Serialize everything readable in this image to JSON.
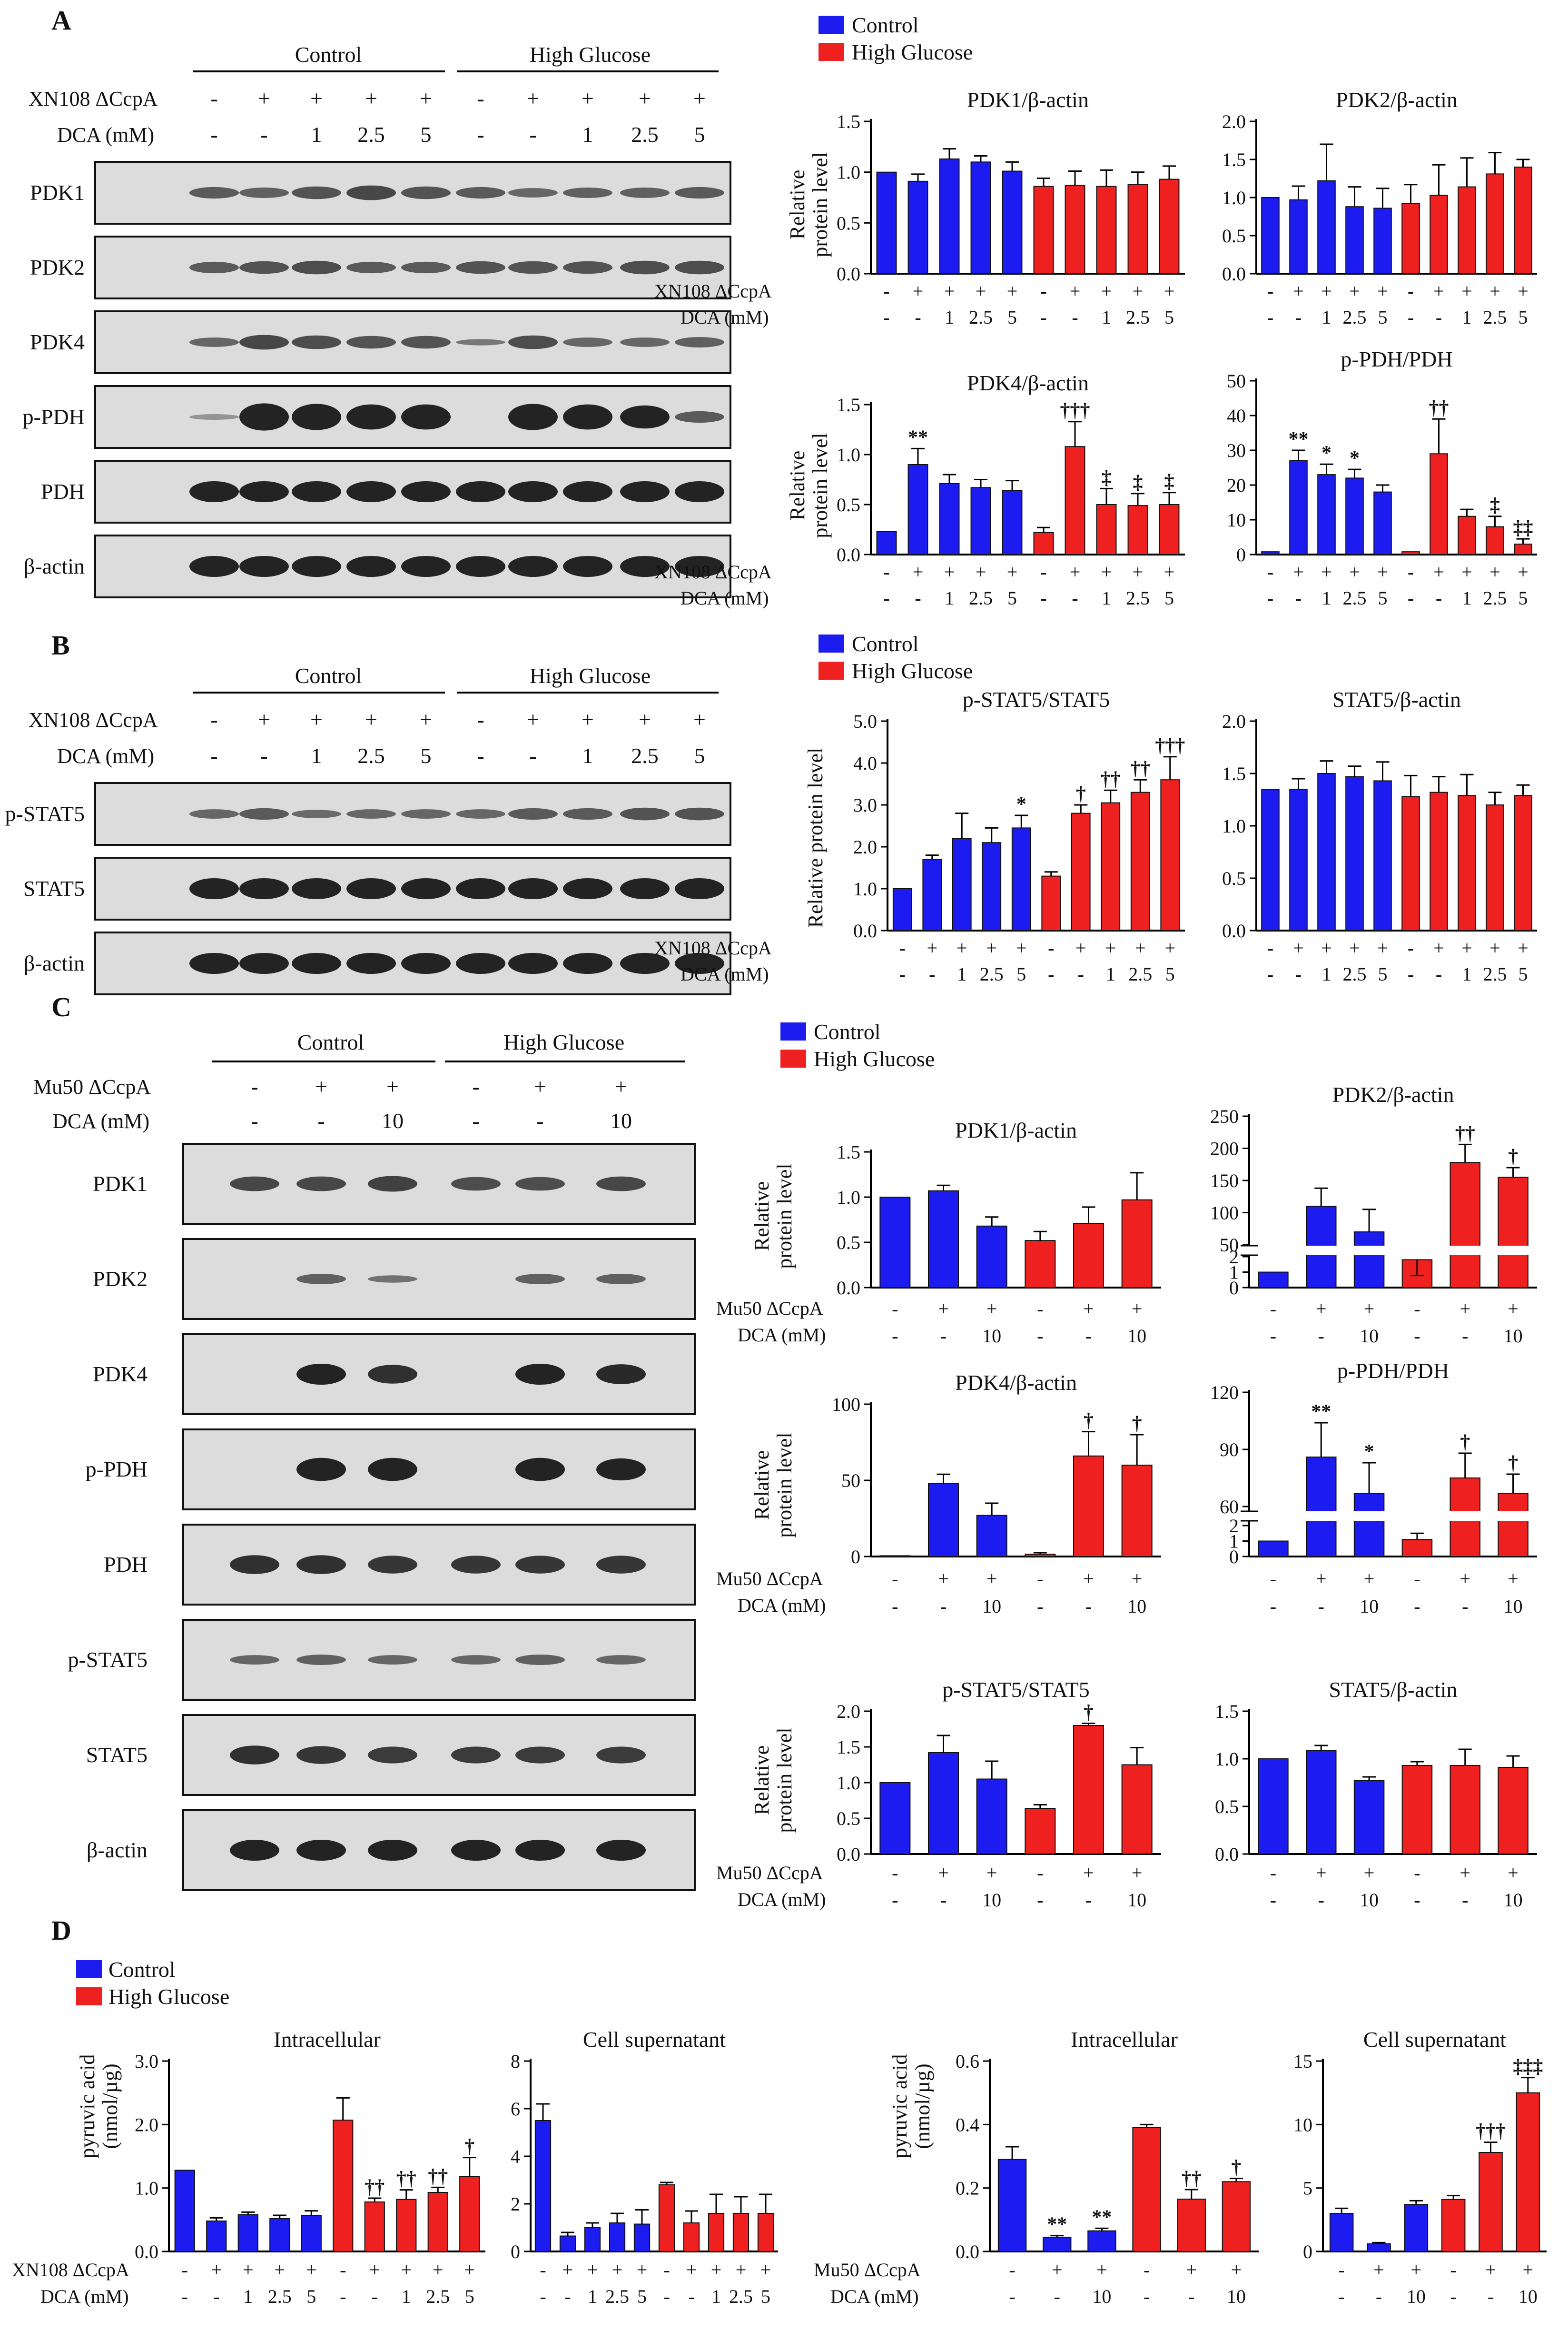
{
  "colors": {
    "control": "#1c1cf0",
    "high_glucose": "#ef2020",
    "blot_bg": "#dcdcdc",
    "band": "#232323"
  },
  "panel_letters": [
    "A",
    "B",
    "C",
    "D"
  ],
  "conditions": {
    "control": "Control",
    "high_glucose": "High Glucose"
  },
  "legend": {
    "control": "Control",
    "high_glucose": "High Glucose"
  },
  "axis_common": {
    "relative": "Relative",
    "protein_level": "protein level",
    "relative_protein_level": "Relative protein level",
    "pyruvic": "pyruvic acid",
    "pyruvic_unit": "(nmol/µg)"
  },
  "rowlabels": {
    "xn108": "XN108 ΔCcpA",
    "mu50": "Mu50 ΔCcpA",
    "dca": "DCA (mM)"
  },
  "treatment_rows": {
    "xn_strain": [
      "-",
      "+",
      "+",
      "+",
      "+",
      "-",
      "+",
      "+",
      "+",
      "+"
    ],
    "xn_dca": [
      "-",
      "-",
      "1",
      "2.5",
      "5",
      "-",
      "-",
      "1",
      "2.5",
      "5"
    ],
    "mu_strain": [
      "-",
      "+",
      "+",
      "-",
      "+",
      "+"
    ],
    "mu_dca": [
      "-",
      "-",
      "10",
      "-",
      "-",
      "10"
    ]
  },
  "blots": {
    "A": [
      "PDK1",
      "PDK2",
      "PDK4",
      "p-PDH",
      "PDH",
      "β-actin"
    ],
    "B": [
      "p-STAT5",
      "STAT5",
      "β-actin"
    ],
    "C": [
      "PDK1",
      "PDK2",
      "PDK4",
      "p-PDH",
      "PDH",
      "p-STAT5",
      "STAT5",
      "β-actin"
    ]
  },
  "chart_data": [
    {
      "id": "A1",
      "type": "bar",
      "title": "PDK1/β-actin",
      "ylabel": "Relative protein level",
      "ylim": [
        0,
        1.5
      ],
      "ticks": [
        "0.0",
        "0.5",
        "1.0",
        "1.5"
      ],
      "categories": [
        "Control -/-",
        "Control +/-",
        "Control +/1",
        "Control +/2.5",
        "Control +/5",
        "High Glucose -/-",
        "High Glucose +/-",
        "High Glucose +/1",
        "High Glucose +/2.5",
        "High Glucose +/5"
      ],
      "values": [
        1.0,
        0.91,
        1.13,
        1.1,
        1.01,
        0.86,
        0.87,
        0.86,
        0.88,
        0.93
      ],
      "errors": [
        0,
        0.07,
        0.1,
        0.06,
        0.09,
        0.08,
        0.14,
        0.16,
        0.12,
        0.13
      ],
      "annotations": [
        "",
        "",
        "",
        "",
        "",
        "",
        "",
        "",
        "",
        ""
      ]
    },
    {
      "id": "A2",
      "type": "bar",
      "title": "PDK2/β-actin",
      "ylabel": "",
      "ylim": [
        0,
        2.0
      ],
      "ticks": [
        "0.0",
        "0.5",
        "1.0",
        "1.5",
        "2.0"
      ],
      "categories": [
        "Control -/-",
        "Control +/-",
        "Control +/1",
        "Control +/2.5",
        "Control +/5",
        "High Glucose -/-",
        "High Glucose +/-",
        "High Glucose +/1",
        "High Glucose +/2.5",
        "High Glucose +/5"
      ],
      "values": [
        1.0,
        0.97,
        1.22,
        0.88,
        0.86,
        0.92,
        1.03,
        1.14,
        1.31,
        1.4
      ],
      "errors": [
        0,
        0.18,
        0.48,
        0.26,
        0.26,
        0.25,
        0.4,
        0.38,
        0.28,
        0.1
      ],
      "annotations": [
        "",
        "",
        "",
        "",
        "",
        "",
        "",
        "",
        "",
        ""
      ]
    },
    {
      "id": "A3",
      "type": "bar",
      "title": "PDK4/β-actin",
      "ylabel": "Relative protein level",
      "ylim": [
        0,
        1.5
      ],
      "ticks": [
        "0.0",
        "0.5",
        "1.0",
        "1.5"
      ],
      "categories": [
        "Control -/-",
        "Control +/-",
        "Control +/1",
        "Control +/2.5",
        "Control +/5",
        "High Glucose -/-",
        "High Glucose +/-",
        "High Glucose +/1",
        "High Glucose +/2.5",
        "High Glucose +/5"
      ],
      "values": [
        0.23,
        0.9,
        0.71,
        0.67,
        0.64,
        0.22,
        1.08,
        0.5,
        0.49,
        0.5
      ],
      "errors": [
        0,
        0.16,
        0.09,
        0.08,
        0.1,
        0.05,
        0.25,
        0.16,
        0.12,
        0.12
      ],
      "annotations": [
        "",
        "**",
        "",
        "",
        "",
        "",
        "†††",
        "‡",
        "‡",
        "‡"
      ]
    },
    {
      "id": "A4",
      "type": "bar",
      "title": "p-PDH/PDH",
      "ylabel": "",
      "ylim": [
        0,
        50
      ],
      "ticks": [
        "0",
        "10",
        "20",
        "30",
        "40",
        "50"
      ],
      "categories": [
        "Control -/-",
        "Control +/-",
        "Control +/1",
        "Control +/2.5",
        "Control +/5",
        "High Glucose -/-",
        "High Glucose +/-",
        "High Glucose +/1",
        "High Glucose +/2.5",
        "High Glucose +/5"
      ],
      "values": [
        0.8,
        27,
        23,
        22,
        18,
        0.8,
        29,
        11,
        8,
        3
      ],
      "errors": [
        0,
        3,
        3,
        2.5,
        2,
        0,
        10,
        2,
        3,
        1.5
      ],
      "annotations": [
        "",
        "**",
        "*",
        "*",
        "",
        "",
        "††",
        "",
        "‡",
        "‡‡"
      ]
    },
    {
      "id": "B1",
      "type": "bar",
      "title": "p-STAT5/STAT5",
      "ylabel": "Relative protein level",
      "ylim": [
        0,
        5
      ],
      "ticks": [
        "0.0",
        "1.0",
        "2.0",
        "3.0",
        "4.0",
        "5.0"
      ],
      "categories": [
        "Control -/-",
        "Control +/-",
        "Control +/1",
        "Control +/2.5",
        "Control +/5",
        "High Glucose -/-",
        "High Glucose +/-",
        "High Glucose +/1",
        "High Glucose +/2.5",
        "High Glucose +/5"
      ],
      "values": [
        1.0,
        1.7,
        2.2,
        2.1,
        2.45,
        1.3,
        2.8,
        3.05,
        3.3,
        3.6
      ],
      "errors": [
        0,
        0.1,
        0.6,
        0.35,
        0.3,
        0.1,
        0.2,
        0.3,
        0.3,
        0.55
      ],
      "annotations": [
        "",
        "",
        "",
        "",
        "*",
        "",
        "†",
        "††",
        "††",
        "†††"
      ]
    },
    {
      "id": "B2",
      "type": "bar",
      "title": "STAT5/β-actin",
      "ylabel": "",
      "ylim": [
        0,
        2.0
      ],
      "ticks": [
        "0.0",
        "0.5",
        "1.0",
        "1.5",
        "2.0"
      ],
      "categories": [
        "Control -/-",
        "Control +/-",
        "Control +/1",
        "Control +/2.5",
        "Control +/5",
        "High Glucose -/-",
        "High Glucose +/-",
        "High Glucose +/1",
        "High Glucose +/2.5",
        "High Glucose +/5"
      ],
      "values": [
        1.35,
        1.35,
        1.5,
        1.47,
        1.43,
        1.28,
        1.32,
        1.29,
        1.2,
        1.29
      ],
      "errors": [
        0,
        0.1,
        0.12,
        0.1,
        0.18,
        0.2,
        0.15,
        0.2,
        0.12,
        0.1
      ],
      "annotations": [
        "",
        "",
        "",
        "",
        "",
        "",
        "",
        "",
        "",
        ""
      ]
    },
    {
      "id": "C1",
      "type": "bar",
      "title": "PDK1/β-actin",
      "ylabel": "Relative protein level",
      "ylim": [
        0,
        1.5
      ],
      "ticks": [
        "0.0",
        "0.5",
        "1.0",
        "1.5"
      ],
      "categories": [
        "Control -/-",
        "Control +/-",
        "Control +/10",
        "High Glucose -/-",
        "High Glucose +/-",
        "High Glucose +/10"
      ],
      "values": [
        1.0,
        1.07,
        0.68,
        0.52,
        0.71,
        0.97
      ],
      "errors": [
        0,
        0.06,
        0.1,
        0.1,
        0.18,
        0.3
      ],
      "annotations": [
        "",
        "",
        "",
        "",
        "",
        ""
      ]
    },
    {
      "id": "C2",
      "type": "bar",
      "title": "PDK2/β-actin",
      "ylabel": "",
      "axis_break": true,
      "ylim": [
        0,
        250
      ],
      "ticks": [
        "0",
        "1",
        "2",
        "50",
        "100",
        "150",
        "200",
        "250"
      ],
      "categories": [
        "Control -/-",
        "Control +/-",
        "Control +/10",
        "High Glucose -/-",
        "High Glucose +/-",
        "High Glucose +/10"
      ],
      "values": [
        1.0,
        110,
        70,
        1.8,
        178,
        155
      ],
      "errors": [
        0,
        28,
        35,
        0.3,
        28,
        15
      ],
      "annotations": [
        "",
        "",
        "",
        "",
        "††",
        "†"
      ]
    },
    {
      "id": "C3",
      "type": "bar",
      "title": "PDK4/β-actin",
      "ylabel": "Relative protein level",
      "ylim": [
        0,
        100
      ],
      "ticks": [
        "0",
        "50",
        "100"
      ],
      "categories": [
        "Control -/-",
        "Control +/-",
        "Control +/10",
        "High Glucose -/-",
        "High Glucose +/-",
        "High Glucose +/10"
      ],
      "values": [
        0.5,
        48,
        27,
        1.5,
        66,
        60
      ],
      "errors": [
        0,
        6,
        8,
        1,
        16,
        20
      ],
      "annotations": [
        "",
        "",
        "",
        "",
        "†",
        "†"
      ]
    },
    {
      "id": "C4",
      "type": "bar",
      "title": "p-PDH/PDH",
      "ylabel": "",
      "axis_break": true,
      "ylim": [
        0,
        120
      ],
      "ticks": [
        "0",
        "1",
        "2",
        "60",
        "90",
        "120"
      ],
      "categories": [
        "Control -/-",
        "Control +/-",
        "Control +/10",
        "High Glucose -/-",
        "High Glucose +/-",
        "High Glucose +/10"
      ],
      "values": [
        1.0,
        86,
        67,
        1.1,
        75,
        67
      ],
      "errors": [
        0,
        18,
        16,
        0.4,
        13,
        10
      ],
      "annotations": [
        "",
        "**",
        "*",
        "",
        "†",
        "†"
      ]
    },
    {
      "id": "C5",
      "type": "bar",
      "title": "p-STAT5/STAT5",
      "ylabel": "Relative protein level",
      "ylim": [
        0,
        2.0
      ],
      "ticks": [
        "0.0",
        "0.5",
        "1.0",
        "1.5",
        "2.0"
      ],
      "categories": [
        "Control -/-",
        "Control +/-",
        "Control +/10",
        "High Glucose -/-",
        "High Glucose +/-",
        "High Glucose +/10"
      ],
      "values": [
        1.0,
        1.42,
        1.05,
        0.64,
        1.8,
        1.25
      ],
      "errors": [
        0,
        0.24,
        0.25,
        0.05,
        0.03,
        0.24
      ],
      "annotations": [
        "",
        "",
        "",
        "",
        "†",
        ""
      ]
    },
    {
      "id": "C6",
      "type": "bar",
      "title": "STAT5/β-actin",
      "ylabel": "",
      "ylim": [
        0,
        1.5
      ],
      "ticks": [
        "0.0",
        "0.5",
        "1.0",
        "1.5"
      ],
      "categories": [
        "Control -/-",
        "Control +/-",
        "Control +/10",
        "High Glucose -/-",
        "High Glucose +/-",
        "High Glucose +/10"
      ],
      "values": [
        1.0,
        1.09,
        0.77,
        0.93,
        0.93,
        0.91
      ],
      "errors": [
        0,
        0.05,
        0.04,
        0.04,
        0.17,
        0.12
      ],
      "annotations": [
        "",
        "",
        "",
        "",
        "",
        ""
      ]
    },
    {
      "id": "D1",
      "type": "bar",
      "title": "Intracellular",
      "ylabel": "pyruvic acid (nmol/µg)",
      "ylim": [
        0,
        3.0
      ],
      "ticks": [
        "0.0",
        "1.0",
        "2.0",
        "3.0"
      ],
      "categories": [
        "Control -/-",
        "Control +/-",
        "Control +/1",
        "Control +/2.5",
        "Control +/5",
        "High Glucose -/-",
        "High Glucose +/-",
        "High Glucose +/1",
        "High Glucose +/2.5",
        "High Glucose +/5"
      ],
      "values": [
        1.28,
        0.48,
        0.58,
        0.52,
        0.57,
        2.07,
        0.78,
        0.82,
        0.93,
        1.18
      ],
      "errors": [
        0,
        0.05,
        0.04,
        0.05,
        0.07,
        0.35,
        0.06,
        0.15,
        0.08,
        0.3
      ],
      "annotations": [
        "",
        "",
        "",
        "",
        "",
        "",
        "††",
        "††",
        "††",
        "†"
      ]
    },
    {
      "id": "D2",
      "type": "bar",
      "title": "Cell supernatant",
      "ylabel": "",
      "ylim": [
        0,
        8
      ],
      "ticks": [
        "0",
        "2",
        "4",
        "6",
        "8"
      ],
      "categories": [
        "Control -/-",
        "Control +/-",
        "Control +/1",
        "Control +/2.5",
        "Control +/5",
        "High Glucose -/-",
        "High Glucose +/-",
        "High Glucose +/1",
        "High Glucose +/2.5",
        "High Glucose +/5"
      ],
      "values": [
        5.5,
        0.65,
        1.0,
        1.2,
        1.15,
        2.8,
        1.2,
        1.6,
        1.6,
        1.6
      ],
      "errors": [
        0.7,
        0.15,
        0.2,
        0.4,
        0.6,
        0.1,
        0.5,
        0.8,
        0.7,
        0.8
      ],
      "annotations": [
        "",
        "",
        "",
        "",
        "",
        "",
        "",
        "",
        "",
        ""
      ]
    },
    {
      "id": "D3",
      "type": "bar",
      "title": "Intracellular",
      "ylabel": "pyruvic acid (nmol/µg)",
      "ylim": [
        0,
        0.6
      ],
      "ticks": [
        "0.0",
        "0.2",
        "0.4",
        "0.6"
      ],
      "categories": [
        "Control -/-",
        "Control +/-",
        "Control +/10",
        "High Glucose -/-",
        "High Glucose +/-",
        "High Glucose +/10"
      ],
      "values": [
        0.29,
        0.045,
        0.065,
        0.39,
        0.165,
        0.22
      ],
      "errors": [
        0.04,
        0.005,
        0.008,
        0.01,
        0.03,
        0.01
      ],
      "annotations": [
        "",
        "**",
        "**",
        "",
        "††",
        "†"
      ]
    },
    {
      "id": "D4",
      "type": "bar",
      "title": "Cell supernatant",
      "ylabel": "",
      "ylim": [
        0,
        15
      ],
      "ticks": [
        "0",
        "5",
        "10",
        "15"
      ],
      "categories": [
        "Control -/-",
        "Control +/-",
        "Control +/10",
        "High Glucose -/-",
        "High Glucose +/-",
        "High Glucose +/10"
      ],
      "values": [
        3.0,
        0.6,
        3.7,
        4.1,
        7.8,
        12.5
      ],
      "errors": [
        0.4,
        0.1,
        0.3,
        0.3,
        0.8,
        1.2
      ],
      "annotations": [
        "",
        "",
        "",
        "",
        "†††",
        "‡‡‡"
      ]
    }
  ]
}
